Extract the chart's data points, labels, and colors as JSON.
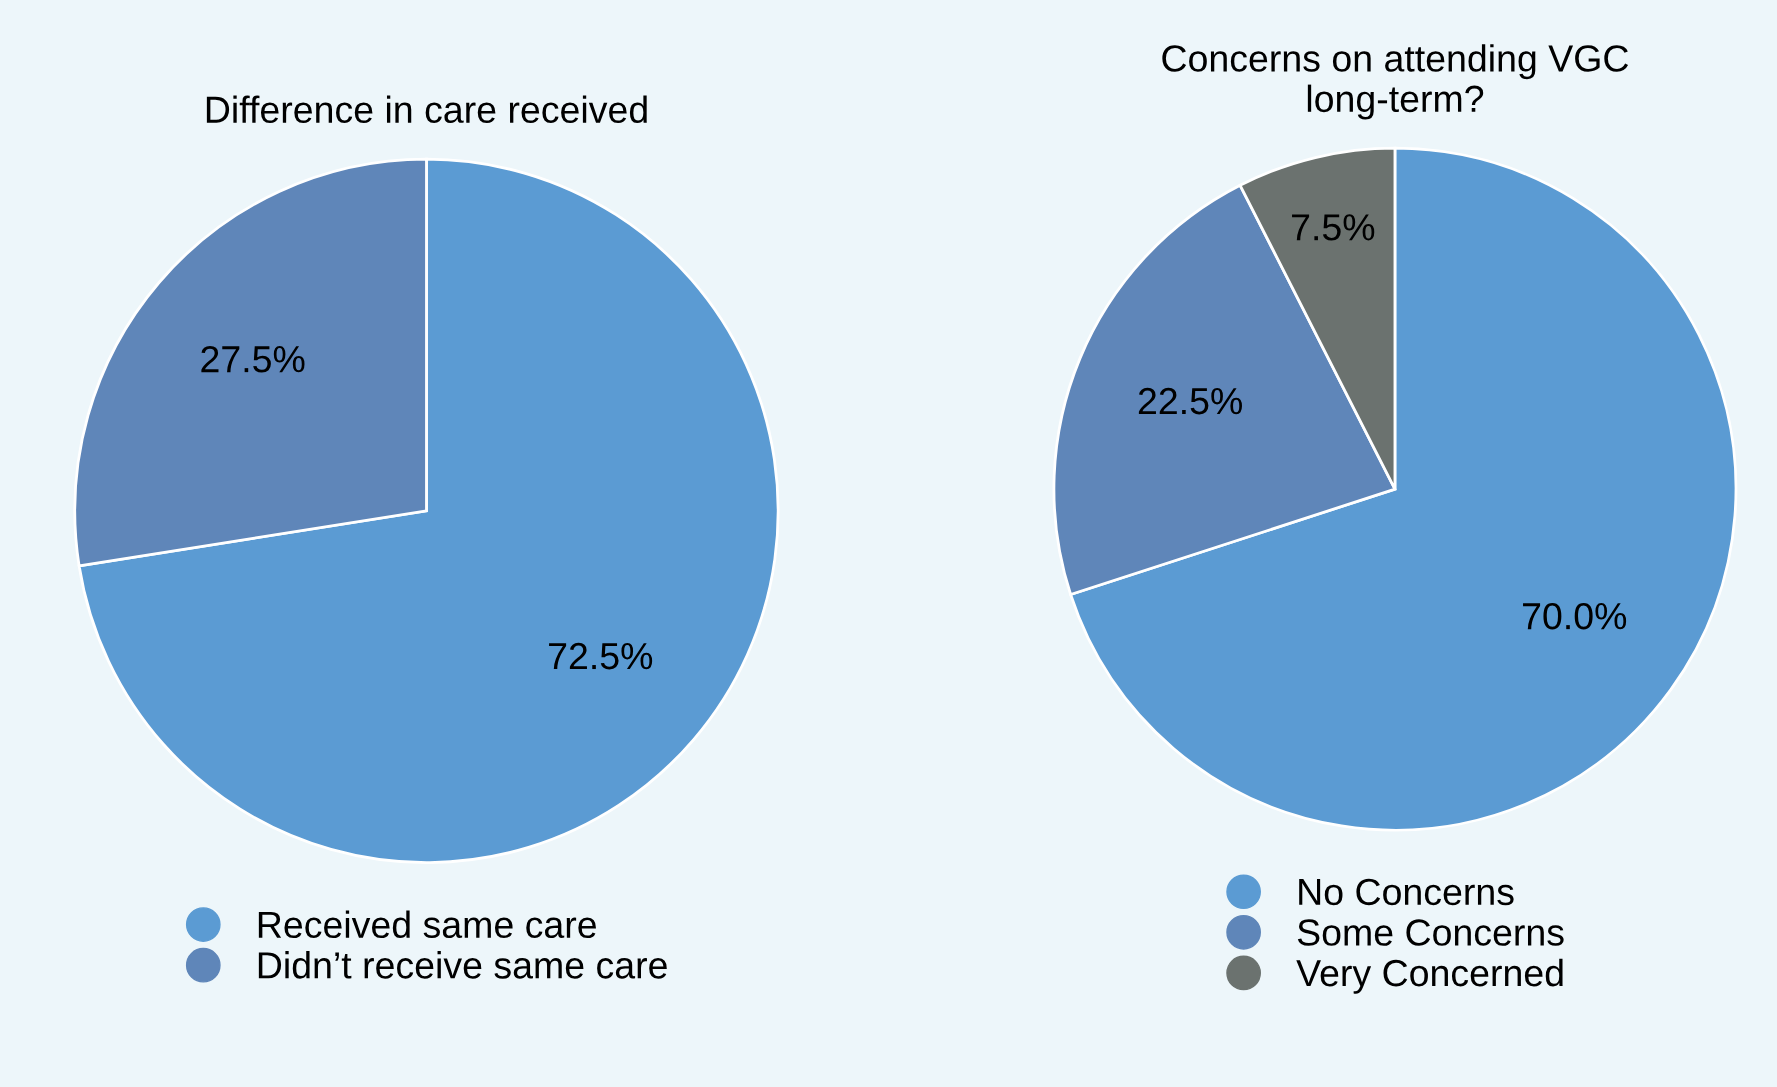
{
  "chart_data": [
    {
      "type": "pie",
      "title": "Difference in care received",
      "categories": [
        "Received same care",
        "Didn’t receive same care"
      ],
      "values": [
        72.5,
        27.5
      ],
      "colors": [
        "#5b9bd3",
        "#5f86b9"
      ],
      "value_labels": [
        "72.5%",
        "27.5%"
      ],
      "legend": "bottom"
    },
    {
      "type": "pie",
      "title": "Concerns on attending VGC long-term?",
      "categories": [
        "No Concerns",
        "Some Concerns",
        "Very Concerned"
      ],
      "values": [
        70.0,
        22.5,
        7.5
      ],
      "colors": [
        "#5b9bd3",
        "#5f86b9",
        "#6b726f"
      ],
      "value_labels": [
        "70.0%",
        "22.5%",
        "7.5%"
      ],
      "legend": "bottom"
    }
  ]
}
